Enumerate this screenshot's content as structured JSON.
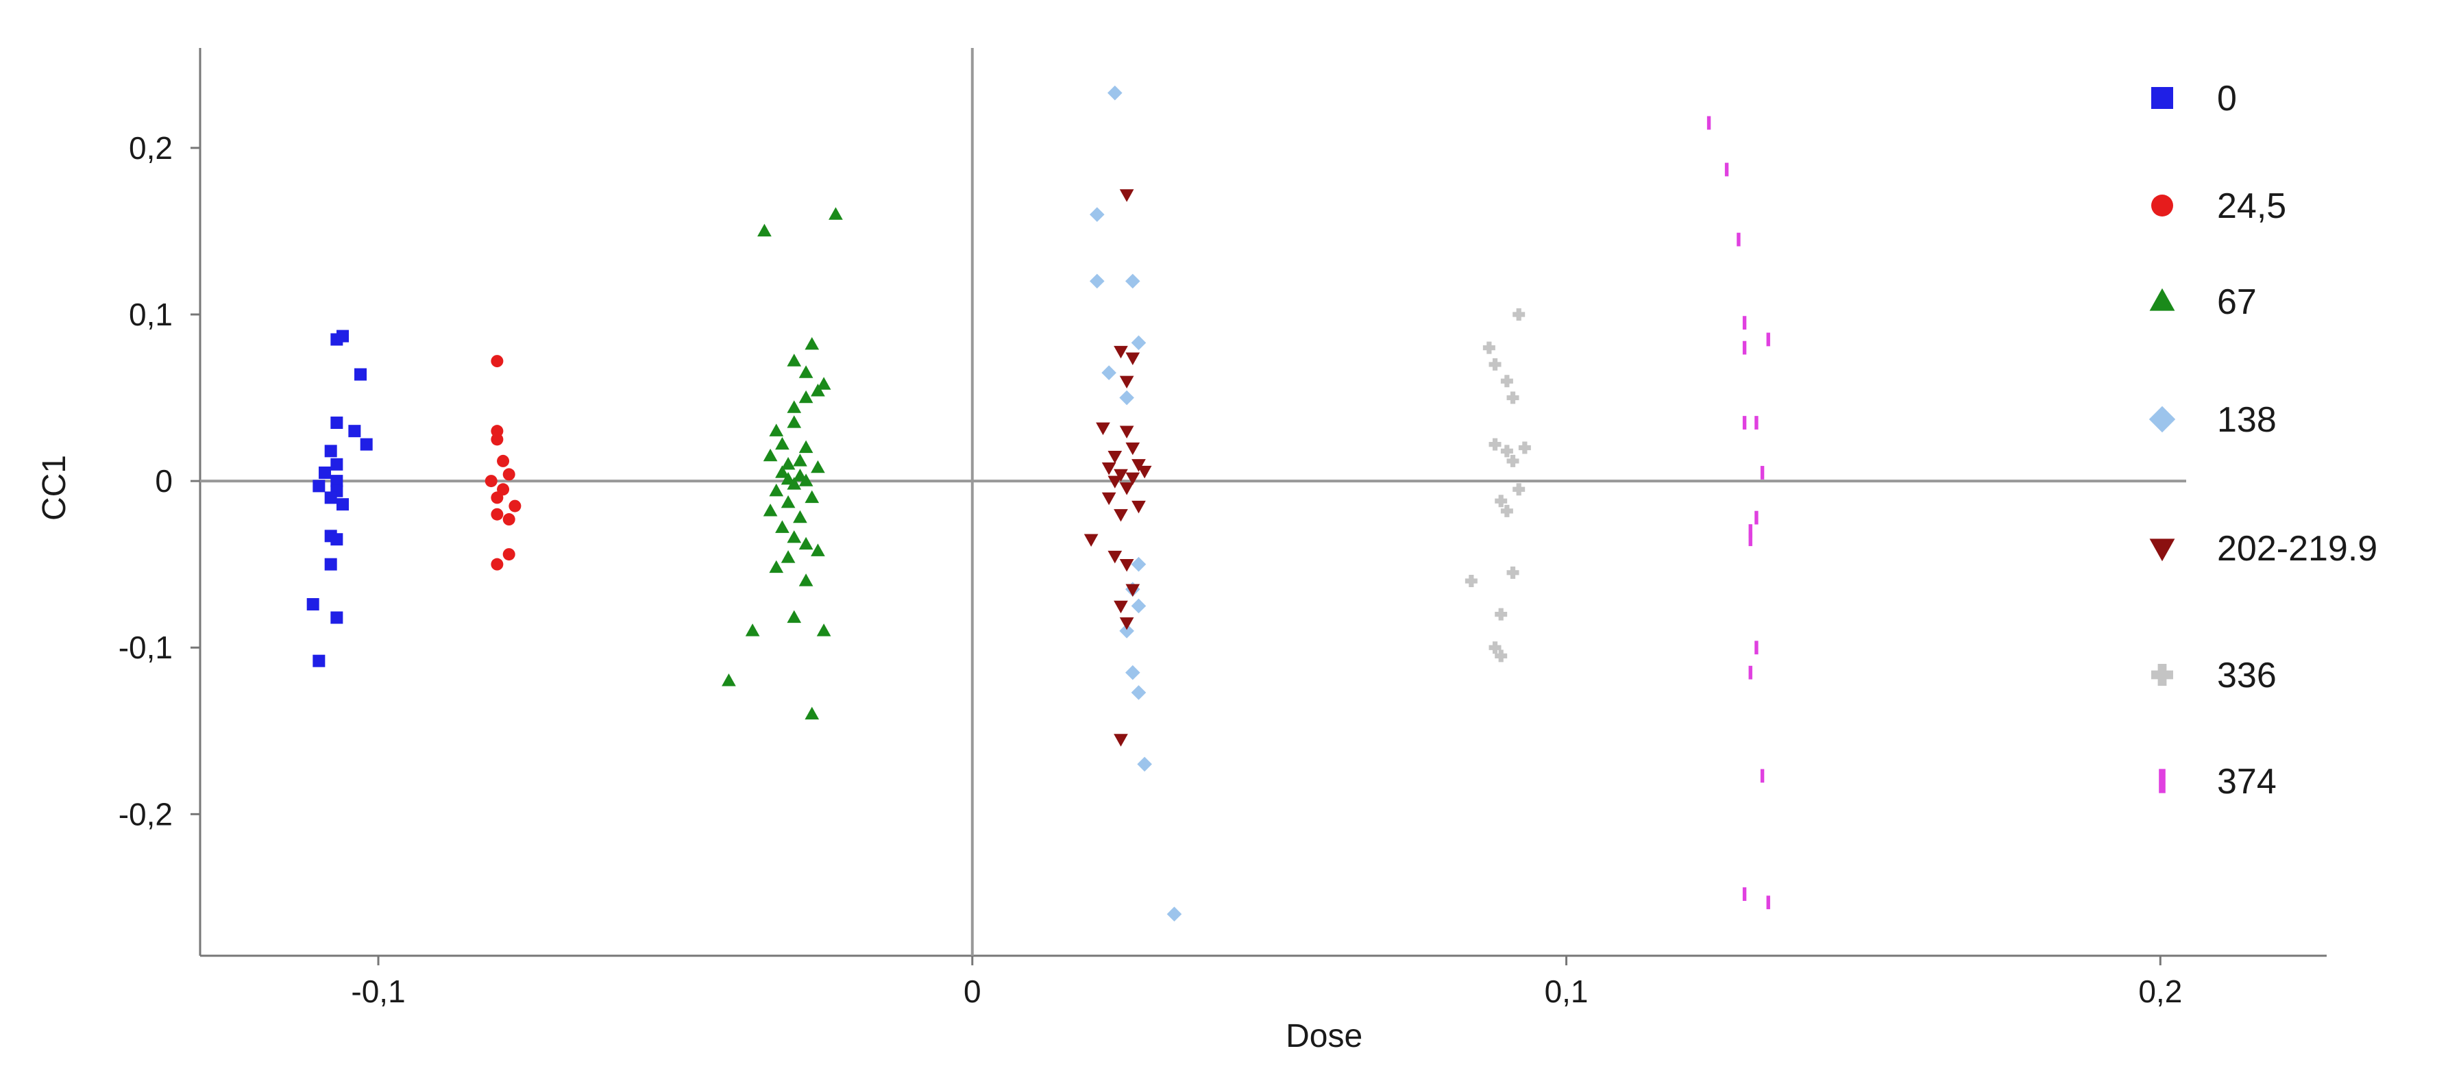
{
  "chart_data": {
    "type": "scatter",
    "title": "",
    "xlabel": "Dose",
    "ylabel": "CC1",
    "xlim": [
      -0.13,
      0.228
    ],
    "ylim": [
      -0.285,
      0.26
    ],
    "xticks": [
      {
        "value": -0.1,
        "label": "-0,1"
      },
      {
        "value": 0,
        "label": "0"
      },
      {
        "value": 0.1,
        "label": "0,1"
      },
      {
        "value": 0.2,
        "label": "0,2"
      }
    ],
    "yticks": [
      {
        "value": 0.2,
        "label": "0,2"
      },
      {
        "value": 0.1,
        "label": "0,1"
      },
      {
        "value": 0,
        "label": "0"
      },
      {
        "value": -0.1,
        "label": "-0,1"
      },
      {
        "value": -0.2,
        "label": "-0,2"
      }
    ],
    "grid": false,
    "reference_lines": [
      "x=0",
      "y=0"
    ],
    "legend_position": "right",
    "series": [
      {
        "name": "0",
        "marker": "square",
        "color": "#1f1fe6",
        "points": [
          [
            -0.107,
            0.085
          ],
          [
            -0.106,
            0.087
          ],
          [
            -0.103,
            0.064
          ],
          [
            -0.107,
            0.035
          ],
          [
            -0.104,
            0.03
          ],
          [
            -0.102,
            0.022
          ],
          [
            -0.108,
            0.018
          ],
          [
            -0.107,
            0.01
          ],
          [
            -0.109,
            0.005
          ],
          [
            -0.107,
            0.0
          ],
          [
            -0.11,
            -0.003
          ],
          [
            -0.107,
            -0.006
          ],
          [
            -0.108,
            -0.01
          ],
          [
            -0.106,
            -0.014
          ],
          [
            -0.108,
            -0.033
          ],
          [
            -0.107,
            -0.035
          ],
          [
            -0.108,
            -0.05
          ],
          [
            -0.111,
            -0.074
          ],
          [
            -0.107,
            -0.082
          ],
          [
            -0.11,
            -0.108
          ]
        ]
      },
      {
        "name": "24,5",
        "marker": "circle",
        "color": "#e61c1c",
        "points": [
          [
            -0.08,
            0.072
          ],
          [
            -0.08,
            0.03
          ],
          [
            -0.08,
            0.025
          ],
          [
            -0.079,
            0.012
          ],
          [
            -0.078,
            0.004
          ],
          [
            -0.081,
            0.0
          ],
          [
            -0.079,
            -0.005
          ],
          [
            -0.08,
            -0.01
          ],
          [
            -0.077,
            -0.015
          ],
          [
            -0.08,
            -0.02
          ],
          [
            -0.078,
            -0.023
          ],
          [
            -0.078,
            -0.044
          ],
          [
            -0.08,
            -0.05
          ]
        ]
      },
      {
        "name": "67",
        "marker": "triangle-up",
        "color": "#1a8a1a",
        "points": [
          [
            -0.035,
            0.15
          ],
          [
            -0.023,
            0.16
          ],
          [
            -0.027,
            0.082
          ],
          [
            -0.03,
            0.072
          ],
          [
            -0.028,
            0.065
          ],
          [
            -0.025,
            0.058
          ],
          [
            -0.026,
            0.054
          ],
          [
            -0.028,
            0.05
          ],
          [
            -0.03,
            0.044
          ],
          [
            -0.033,
            0.03
          ],
          [
            -0.03,
            0.035
          ],
          [
            -0.032,
            0.022
          ],
          [
            -0.028,
            0.02
          ],
          [
            -0.034,
            0.015
          ],
          [
            -0.029,
            0.012
          ],
          [
            -0.031,
            0.01
          ],
          [
            -0.026,
            0.008
          ],
          [
            -0.032,
            0.005
          ],
          [
            -0.029,
            0.003
          ],
          [
            -0.031,
            0.001
          ],
          [
            -0.028,
            0.0
          ],
          [
            -0.03,
            -0.002
          ],
          [
            -0.033,
            -0.006
          ],
          [
            -0.027,
            -0.01
          ],
          [
            -0.031,
            -0.013
          ],
          [
            -0.034,
            -0.018
          ],
          [
            -0.029,
            -0.022
          ],
          [
            -0.032,
            -0.028
          ],
          [
            -0.03,
            -0.034
          ],
          [
            -0.028,
            -0.038
          ],
          [
            -0.026,
            -0.042
          ],
          [
            -0.031,
            -0.046
          ],
          [
            -0.033,
            -0.052
          ],
          [
            -0.028,
            -0.06
          ],
          [
            -0.037,
            -0.09
          ],
          [
            -0.03,
            -0.082
          ],
          [
            -0.025,
            -0.09
          ],
          [
            -0.041,
            -0.12
          ],
          [
            -0.027,
            -0.14
          ]
        ]
      },
      {
        "name": "138",
        "marker": "diamond",
        "color": "#9cc4ec",
        "points": [
          [
            0.024,
            0.233
          ],
          [
            0.021,
            0.16
          ],
          [
            0.021,
            0.12
          ],
          [
            0.027,
            0.12
          ],
          [
            0.028,
            0.083
          ],
          [
            0.023,
            0.065
          ],
          [
            0.026,
            0.05
          ],
          [
            0.028,
            -0.05
          ],
          [
            0.027,
            -0.065
          ],
          [
            0.028,
            -0.075
          ],
          [
            0.026,
            -0.09
          ],
          [
            0.027,
            -0.115
          ],
          [
            0.028,
            -0.127
          ],
          [
            0.029,
            -0.17
          ],
          [
            0.034,
            -0.26
          ]
        ]
      },
      {
        "name": "202-219.9",
        "marker": "triangle-down",
        "color": "#8b1010",
        "points": [
          [
            0.026,
            0.172
          ],
          [
            0.025,
            0.078
          ],
          [
            0.027,
            0.074
          ],
          [
            0.026,
            0.06
          ],
          [
            0.022,
            0.032
          ],
          [
            0.026,
            0.03
          ],
          [
            0.027,
            0.02
          ],
          [
            0.024,
            0.015
          ],
          [
            0.028,
            0.01
          ],
          [
            0.023,
            0.008
          ],
          [
            0.029,
            0.006
          ],
          [
            0.025,
            0.004
          ],
          [
            0.027,
            0.002
          ],
          [
            0.024,
            0.0
          ],
          [
            0.026,
            -0.004
          ],
          [
            0.023,
            -0.01
          ],
          [
            0.028,
            -0.015
          ],
          [
            0.025,
            -0.02
          ],
          [
            0.02,
            -0.035
          ],
          [
            0.024,
            -0.045
          ],
          [
            0.026,
            -0.05
          ],
          [
            0.027,
            -0.065
          ],
          [
            0.025,
            -0.075
          ],
          [
            0.026,
            -0.085
          ],
          [
            0.025,
            -0.155
          ]
        ]
      },
      {
        "name": "336",
        "marker": "plus",
        "color": "#c4c4c4",
        "points": [
          [
            0.087,
            0.08
          ],
          [
            0.092,
            0.1
          ],
          [
            0.088,
            0.07
          ],
          [
            0.09,
            0.06
          ],
          [
            0.091,
            0.05
          ],
          [
            0.088,
            0.022
          ],
          [
            0.093,
            0.02
          ],
          [
            0.09,
            0.018
          ],
          [
            0.091,
            0.012
          ],
          [
            0.092,
            -0.005
          ],
          [
            0.089,
            -0.012
          ],
          [
            0.09,
            -0.018
          ],
          [
            0.091,
            -0.055
          ],
          [
            0.084,
            -0.06
          ],
          [
            0.089,
            -0.08
          ],
          [
            0.088,
            -0.1
          ],
          [
            0.089,
            -0.105
          ]
        ]
      },
      {
        "name": "374",
        "marker": "tick",
        "color": "#e040e0",
        "points": [
          [
            0.124,
            0.215
          ],
          [
            0.127,
            0.187
          ],
          [
            0.129,
            0.145
          ],
          [
            0.13,
            0.095
          ],
          [
            0.134,
            0.085
          ],
          [
            0.13,
            0.08
          ],
          [
            0.13,
            0.035
          ],
          [
            0.132,
            0.035
          ],
          [
            0.133,
            0.005
          ],
          [
            0.132,
            -0.022
          ],
          [
            0.131,
            -0.03
          ],
          [
            0.131,
            -0.035
          ],
          [
            0.132,
            -0.1
          ],
          [
            0.131,
            -0.115
          ],
          [
            0.133,
            -0.177
          ],
          [
            0.13,
            -0.248
          ],
          [
            0.134,
            -0.253
          ]
        ]
      }
    ]
  }
}
